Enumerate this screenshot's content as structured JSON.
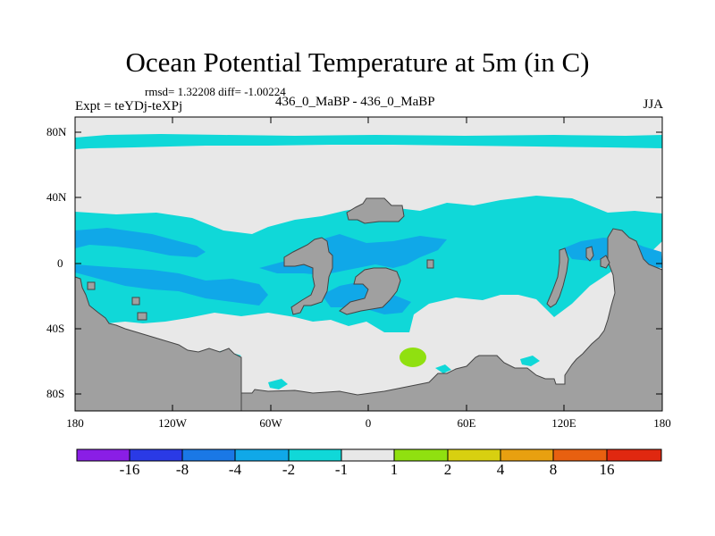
{
  "figure": {
    "title": "Ocean Potential Temperature at 5m (in C)",
    "stats": "rmsd= 1.32208 diff= -1.00224",
    "expt": "Expt = teYDj-teXPj",
    "case": "436_0_MaBP - 436_0_MaBP",
    "season": "JJA"
  },
  "map": {
    "lat_labels": [
      "80N",
      "40N",
      "0",
      "40S",
      "80S"
    ],
    "lon_labels": [
      "180",
      "120W",
      "60W",
      "0",
      "60E",
      "120E",
      "180"
    ],
    "colors": {
      "land": "#a0a0a0",
      "near_zero": "#e8e8e8",
      "band_neg1_neg2": "#10d8d8",
      "band_neg2_neg4": "#10a8e8",
      "band_pos1_pos2": "#90e010"
    }
  },
  "colorbar": {
    "labels": [
      "-16",
      "-8",
      "-4",
      "-2",
      "-1",
      "1",
      "2",
      "4",
      "8",
      "16"
    ],
    "colors": [
      "#8a1ee6",
      "#2a3ae6",
      "#1a78e6",
      "#10a8e8",
      "#10d8d8",
      "#e8e8e8",
      "#90e010",
      "#d8d010",
      "#e8a010",
      "#e86010",
      "#e02810"
    ]
  }
}
